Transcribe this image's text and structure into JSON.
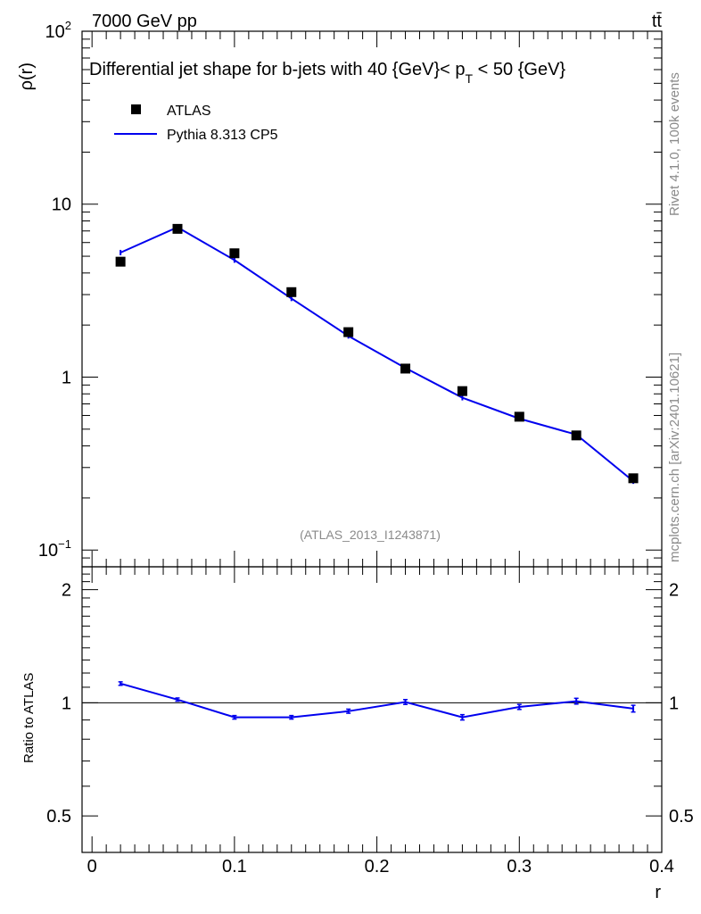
{
  "header": {
    "energy_label": "7000 GeV pp",
    "process_label": "tt̄"
  },
  "side_labels": {
    "rivet": "Rivet 4.1.0,  100k events",
    "mcplots": "mcplots.cern.ch [arXiv:2401.10621]"
  },
  "chart_data": {
    "type": "line",
    "title_parts": {
      "prefix": "Differential jet shape for b-jets with 40 {GeV}< p",
      "subscript": "T",
      "suffix": " < 50 {GeV}"
    },
    "analysis_id": "(ATLAS_2013_I1243871)",
    "xlabel": "r",
    "ylabel_main": "ρ(r)",
    "ylabel_ratio": "Ratio to ATLAS",
    "xlim": [
      -0.007,
      0.4
    ],
    "ylim_main": [
      0.08,
      100
    ],
    "yscale_main": "log",
    "ylim_ratio": [
      0.4,
      2.3
    ],
    "yscale_ratio": "log",
    "x_ticks": [
      0,
      0.1,
      0.2,
      0.3,
      0.4
    ],
    "x_tick_labels": [
      "0",
      "0.1",
      "0.2",
      "0.3",
      "0.4"
    ],
    "main_y_ticks": [
      {
        "value": 100,
        "base": "10",
        "exp": "2"
      },
      {
        "value": 10,
        "base": "10",
        "exp": ""
      },
      {
        "value": 1,
        "base": "1",
        "exp": ""
      },
      {
        "value": 0.1,
        "base": "10",
        "exp": "−1"
      }
    ],
    "ratio_y_ticks": [
      {
        "value": 2,
        "label": "2"
      },
      {
        "value": 1,
        "label": "1"
      },
      {
        "value": 0.5,
        "label": "0.5"
      }
    ],
    "legend": {
      "position": "top-left",
      "entries": [
        "ATLAS",
        "Pythia 8.313 CP5"
      ]
    },
    "x": [
      0.02,
      0.06,
      0.1,
      0.14,
      0.18,
      0.22,
      0.26,
      0.3,
      0.34,
      0.38
    ],
    "series": [
      {
        "name": "ATLAS",
        "style": "markers",
        "color": "#000000",
        "values": [
          4.65,
          7.2,
          5.2,
          3.1,
          1.82,
          1.12,
          0.83,
          0.59,
          0.46,
          0.26
        ]
      },
      {
        "name": "Pythia 8.313 CP5",
        "style": "line",
        "color": "#0000ee",
        "values": [
          5.25,
          7.35,
          4.75,
          2.85,
          1.73,
          1.13,
          0.76,
          0.575,
          0.465,
          0.25
        ]
      }
    ],
    "ratio": {
      "reference": "ATLAS",
      "values": [
        1.125,
        1.02,
        0.915,
        0.915,
        0.95,
        1.005,
        0.915,
        0.975,
        1.01,
        0.965
      ],
      "errors": [
        0.012,
        0.01,
        0.01,
        0.01,
        0.012,
        0.015,
        0.015,
        0.015,
        0.018,
        0.02
      ]
    }
  }
}
